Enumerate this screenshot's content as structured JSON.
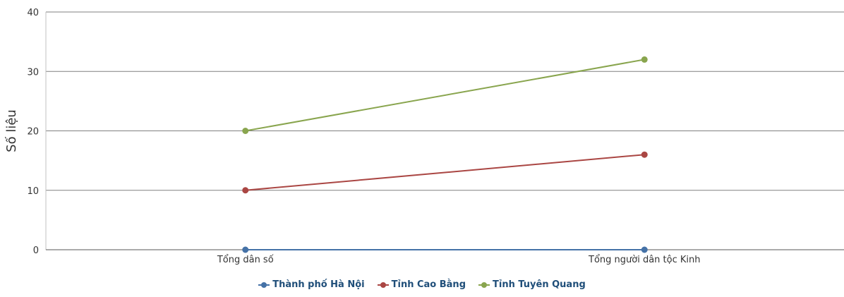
{
  "chart_data": {
    "type": "line",
    "categories": [
      "Tổng dân số",
      "Tổng người dân tộc Kinh"
    ],
    "series": [
      {
        "name": "Thành phố Hà Nội",
        "values": [
          0,
          0
        ],
        "color": "#4572A7"
      },
      {
        "name": "Tỉnh Cao Bằng",
        "values": [
          10,
          16
        ],
        "color": "#AA4643"
      },
      {
        "name": "Tỉnh Tuyên Quang",
        "values": [
          20,
          32
        ],
        "color": "#89A54E"
      }
    ],
    "ylabel": "Số liệu",
    "ylim": [
      0,
      40
    ],
    "yticks": [
      0,
      10,
      20,
      30,
      40
    ],
    "grid": true,
    "legend_position": "bottom-center"
  }
}
